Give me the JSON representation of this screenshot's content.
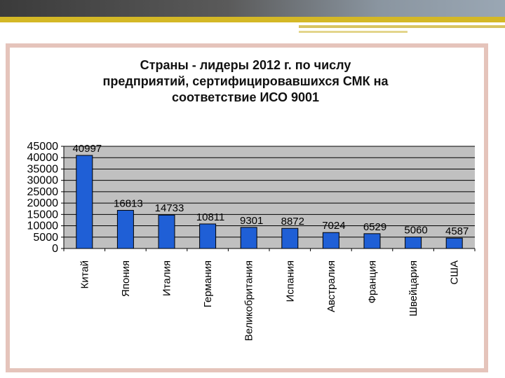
{
  "chart_data": {
    "type": "bar",
    "title_lines": [
      "Страны - лидеры 2012 г. по числу",
      "предприятий, сертифицировавшихся СМК на",
      "соответствие ИСО 9001"
    ],
    "categories": [
      "Китай",
      "Япония",
      "Италия",
      "Германия",
      "Великобритания",
      "Испания",
      "Австралия",
      "Франция",
      "Швейцария",
      "США"
    ],
    "values": [
      40997,
      16813,
      14733,
      10811,
      9301,
      8872,
      7024,
      6529,
      5060,
      4587
    ],
    "ylim": [
      0,
      45000
    ],
    "yticks": [
      0,
      5000,
      10000,
      15000,
      20000,
      25000,
      30000,
      35000,
      40000,
      45000
    ],
    "xlabel": "",
    "ylabel": "",
    "grid": true,
    "bar_color": "#1f5fd6",
    "plot_background": "#c0c0c0"
  }
}
